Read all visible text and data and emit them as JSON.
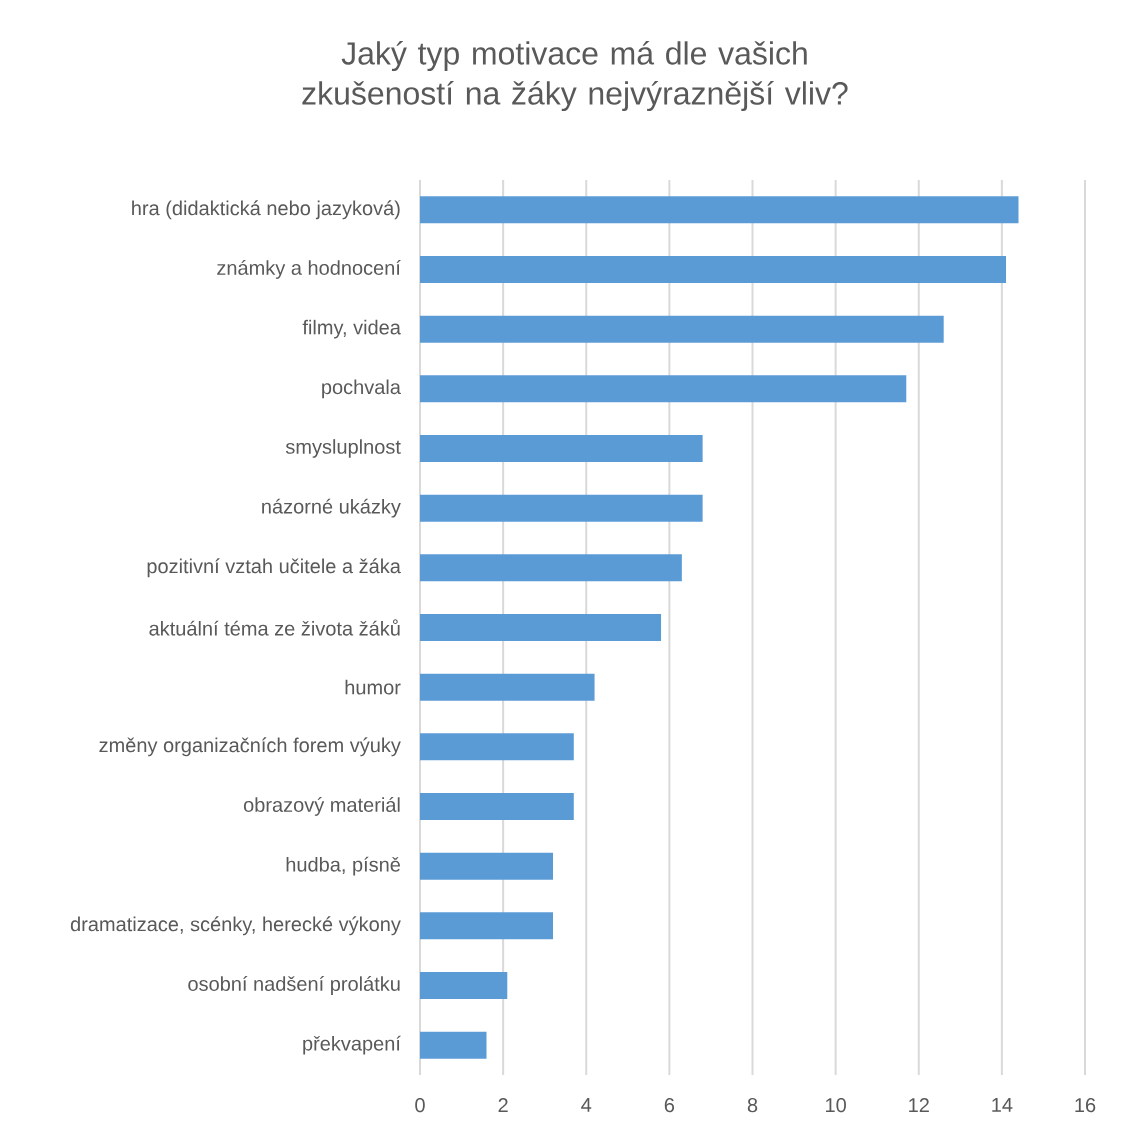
{
  "chart_data": {
    "type": "bar",
    "orientation": "horizontal",
    "title": "Jaký typ motivace má dle vašich zkušeností na žáky nejvýraznější vliv?",
    "categories": [
      "hra (didaktická nebo jazyková)",
      "známky a hodnocení",
      "filmy, videa",
      "pochvala",
      "smysluplnost",
      "názorné ukázky",
      "pozitivní vztah učitele a žáka",
      "aktuální téma ze života žáků",
      "humor",
      "změny organizačních forem výuky",
      "obrazový materiál",
      "hudba, písně",
      "dramatizace, scénky, herecké výkony",
      "osobní nadšení prolátku",
      "překvapení"
    ],
    "values": [
      14.4,
      14.1,
      12.6,
      11.7,
      6.8,
      6.8,
      6.3,
      5.8,
      4.2,
      3.7,
      3.7,
      3.2,
      3.2,
      2.1,
      1.6
    ],
    "color": "#5b9bd5",
    "xlim": [
      0,
      16
    ],
    "xticks": [
      0,
      2,
      4,
      6,
      8,
      10,
      12,
      14,
      16
    ],
    "grid": "x"
  }
}
